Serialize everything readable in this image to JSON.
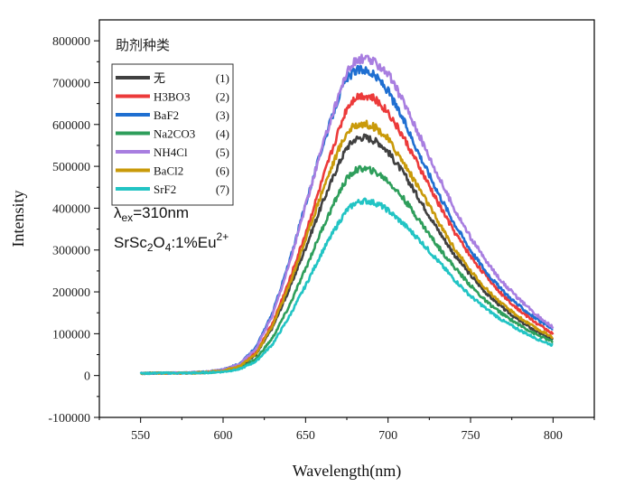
{
  "chart_data": {
    "type": "line",
    "xlabel": "Wavelength(nm)",
    "ylabel": "Intensity",
    "xlim": [
      525,
      825
    ],
    "ylim": [
      -100000,
      850000
    ],
    "x_ticks": [
      550,
      600,
      650,
      700,
      750,
      800
    ],
    "x_tick_labels": [
      "550",
      "600",
      "650",
      "700",
      "750",
      "800"
    ],
    "y_ticks": [
      -100000,
      0,
      100000,
      200000,
      300000,
      400000,
      500000,
      600000,
      700000,
      800000
    ],
    "y_tick_labels": [
      "-100000",
      "0",
      "100000",
      "200000",
      "300000",
      "400000",
      "500000",
      "600000",
      "700000",
      "800000"
    ],
    "grid": false,
    "legend": {
      "title": "助剂种类",
      "placement": "top-left",
      "entries": [
        {
          "name": "无",
          "tag": "(1)"
        },
        {
          "name": "H3BO3",
          "tag": "(2)"
        },
        {
          "name": "BaF2",
          "tag": "(3)"
        },
        {
          "name": "Na2CO3",
          "tag": "(4)"
        },
        {
          "name": "NH4Cl",
          "tag": "(5)"
        },
        {
          "name": "BaCl2",
          "tag": "(6)"
        },
        {
          "name": "SrF2",
          "tag": "(7)"
        }
      ]
    },
    "annotations": {
      "excitation": {
        "lambda": "λ",
        "sub": "ex",
        "text": "=310nm"
      },
      "formula": {
        "p1": "SrSc",
        "s1": "2",
        "p2": "O",
        "s2": "4",
        "p3": ":1%Eu",
        "sup": "2+"
      }
    },
    "x": [
      550,
      560,
      570,
      580,
      590,
      600,
      610,
      620,
      630,
      640,
      650,
      660,
      670,
      675,
      680,
      685,
      690,
      695,
      700,
      710,
      720,
      730,
      740,
      750,
      760,
      770,
      780,
      790,
      800
    ],
    "series": [
      {
        "name": "无",
        "color": "#404040",
        "values": [
          5000,
          6000,
          6000,
          6000,
          8000,
          12000,
          22000,
          50000,
          115000,
          205000,
          305000,
          410000,
          505000,
          545000,
          565000,
          570000,
          565000,
          555000,
          535000,
          480000,
          415000,
          350000,
          290000,
          240000,
          195000,
          160000,
          130000,
          105000,
          85000
        ]
      },
      {
        "name": "H3BO3",
        "color": "#ec3a3a",
        "values": [
          5000,
          6000,
          6000,
          6000,
          8000,
          12000,
          23000,
          55000,
          125000,
          225000,
          340000,
          465000,
          585000,
          640000,
          665000,
          670000,
          665000,
          650000,
          630000,
          565000,
          490000,
          415000,
          345000,
          285000,
          235000,
          190000,
          155000,
          125000,
          100000
        ]
      },
      {
        "name": "BaF2",
        "color": "#1f6fd1",
        "values": [
          5000,
          6000,
          6000,
          7000,
          9000,
          14000,
          28000,
          68000,
          150000,
          270000,
          410000,
          545000,
          665000,
          710000,
          728000,
          732000,
          722000,
          705000,
          680000,
          605000,
          520000,
          440000,
          365000,
          300000,
          245000,
          200000,
          165000,
          135000,
          110000
        ]
      },
      {
        "name": "Na2CO3",
        "color": "#2e9e5b",
        "values": [
          5000,
          6000,
          6000,
          6000,
          7000,
          10000,
          18000,
          40000,
          90000,
          165000,
          255000,
          350000,
          435000,
          470000,
          490000,
          495000,
          490000,
          480000,
          465000,
          420000,
          365000,
          310000,
          260000,
          215000,
          175000,
          145000,
          120000,
          98000,
          80000
        ]
      },
      {
        "name": "NH4Cl",
        "color": "#a87ee0",
        "values": [
          5000,
          6000,
          6000,
          7000,
          9000,
          14000,
          27000,
          65000,
          145000,
          265000,
          405000,
          545000,
          670000,
          725000,
          750000,
          758000,
          752000,
          740000,
          722000,
          650000,
          565000,
          480000,
          400000,
          330000,
          270000,
          220000,
          180000,
          145000,
          115000
        ]
      },
      {
        "name": "BaCl2",
        "color": "#c99a0a",
        "values": [
          5000,
          6000,
          6000,
          6000,
          8000,
          12000,
          22000,
          52000,
          120000,
          215000,
          325000,
          440000,
          540000,
          580000,
          598000,
          602000,
          598000,
          585000,
          565000,
          505000,
          440000,
          370000,
          305000,
          250000,
          205000,
          168000,
          138000,
          112000,
          92000
        ]
      },
      {
        "name": "SrF2",
        "color": "#22c4c4",
        "values": [
          5000,
          6000,
          6000,
          6000,
          7000,
          9000,
          15000,
          34000,
          75000,
          140000,
          215000,
          295000,
          365000,
          395000,
          412000,
          418000,
          415000,
          408000,
          395000,
          360000,
          320000,
          275000,
          230000,
          190000,
          158000,
          130000,
          108000,
          88000,
          72000
        ]
      }
    ]
  }
}
